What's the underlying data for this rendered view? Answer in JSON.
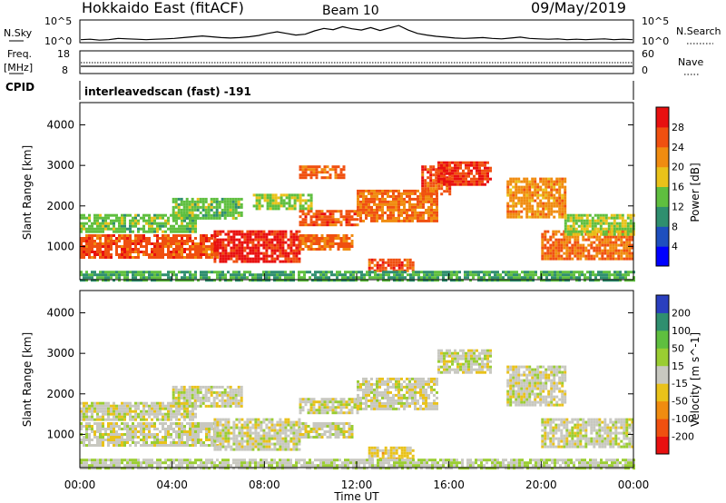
{
  "header": {
    "title": "Hokkaido East (fitACF)",
    "beam": "Beam 10",
    "date": "09/May/2019"
  },
  "aux_panels": {
    "nsky": {
      "label": "N.Sky",
      "y_ticks_left": [
        "10^5",
        "10^0"
      ],
      "y_ticks_right": [
        "10^5",
        "10^0"
      ],
      "right_label": "N.Search",
      "values": [
        0.5,
        0.6,
        0.4,
        0.5,
        0.8,
        0.7,
        0.6,
        0.5,
        0.6,
        0.7,
        0.8,
        1.0,
        1.2,
        1.4,
        1.2,
        1.0,
        0.9,
        1.0,
        1.2,
        1.5,
        2.0,
        2.4,
        2.0,
        1.6,
        1.8,
        2.6,
        3.2,
        2.9,
        3.6,
        3.1,
        2.8,
        3.4,
        2.7,
        3.3,
        3.9,
        2.8,
        2.0,
        1.6,
        1.3,
        1.1,
        0.9,
        0.8,
        0.9,
        1.0,
        0.8,
        0.7,
        0.9,
        1.1,
        0.8,
        0.7,
        0.6,
        0.7,
        0.5,
        0.6,
        0.5,
        0.6,
        0.7,
        0.5,
        0.6,
        0.5
      ]
    },
    "freq": {
      "label": "Freq.",
      "unit": "[MHz]",
      "y_ticks_left": [
        "18",
        "8"
      ],
      "y_ticks_right": [
        "60",
        "0"
      ],
      "right_label": "Nave"
    },
    "cpid": {
      "label": "CPID",
      "text": "interleavedscan (fast) -191"
    }
  },
  "x_axis": {
    "label": "Time UT",
    "ticks": [
      "00:00",
      "04:00",
      "08:00",
      "12:00",
      "16:00",
      "20:00",
      "00:00"
    ]
  },
  "chart_data": [
    {
      "type": "heatmap",
      "name": "power",
      "ylabel": "Slant Range [km]",
      "yticks": [
        1000,
        2000,
        3000,
        4000
      ],
      "ylim": [
        180,
        4550
      ],
      "xlim_hours": [
        0,
        24
      ],
      "colorbar": {
        "label": "Power [dB]",
        "ticks": [
          "4",
          "8",
          "12",
          "16",
          "20",
          "24",
          "28"
        ],
        "range": [
          0,
          32
        ],
        "colors": [
          "#0000ff",
          "#1e4fbf",
          "#2f8f6f",
          "#5fbf3f",
          "#e9c21a",
          "#f08c10",
          "#f05010",
          "#e81010"
        ]
      },
      "regions": [
        {
          "t0": 0,
          "t1": 6,
          "r0": 700,
          "r1": 1300,
          "level": 26
        },
        {
          "t0": 5.8,
          "t1": 9.5,
          "r0": 600,
          "r1": 1400,
          "level": 29
        },
        {
          "t0": 9.5,
          "t1": 11.8,
          "r0": 900,
          "r1": 1300,
          "level": 24
        },
        {
          "t0": 0,
          "t1": 5,
          "r0": 1350,
          "r1": 1800,
          "level": 14
        },
        {
          "t0": 4,
          "t1": 7,
          "r0": 1700,
          "r1": 2200,
          "level": 14
        },
        {
          "t0": 7.5,
          "t1": 10,
          "r0": 1900,
          "r1": 2300,
          "level": 16
        },
        {
          "t0": 9.5,
          "t1": 12,
          "r0": 1500,
          "r1": 1900,
          "level": 26
        },
        {
          "t0": 9.5,
          "t1": 11.5,
          "r0": 2700,
          "r1": 3000,
          "level": 25
        },
        {
          "t0": 12,
          "t1": 15.5,
          "r0": 1600,
          "r1": 2400,
          "level": 24
        },
        {
          "t0": 14.8,
          "t1": 16,
          "r0": 2300,
          "r1": 3000,
          "level": 26
        },
        {
          "t0": 15.5,
          "t1": 17.8,
          "r0": 2500,
          "r1": 3100,
          "level": 28
        },
        {
          "t0": 12.5,
          "t1": 14.5,
          "r0": 400,
          "r1": 700,
          "level": 26
        },
        {
          "t0": 18.5,
          "t1": 21,
          "r0": 1700,
          "r1": 2700,
          "level": 22
        },
        {
          "t0": 20,
          "t1": 24,
          "r0": 700,
          "r1": 1400,
          "level": 24
        },
        {
          "t0": 21,
          "t1": 24,
          "r0": 1300,
          "r1": 1800,
          "level": 16
        },
        {
          "t0": 0,
          "t1": 24,
          "r0": 180,
          "r1": 400,
          "level": 12
        }
      ]
    },
    {
      "type": "heatmap",
      "name": "velocity",
      "ylabel": "Slant Range [km]",
      "yticks": [
        1000,
        2000,
        3000,
        4000
      ],
      "ylim": [
        180,
        4550
      ],
      "xlim_hours": [
        0,
        24
      ],
      "colorbar": {
        "label": "Velocity [m s^-1]",
        "ticks": [
          "200",
          "100",
          "50",
          "15",
          "-15",
          "-50",
          "-100",
          "-200"
        ],
        "range": [
          -250,
          250
        ],
        "colors": [
          "#2a3fbf",
          "#2f8f6f",
          "#5fbf3f",
          "#9acd32",
          "#c8c8c0",
          "#e9c21a",
          "#f08c10",
          "#f05010",
          "#e81010"
        ]
      },
      "regions": [
        {
          "t0": 0,
          "t1": 6,
          "r0": 700,
          "r1": 1300,
          "level": 0
        },
        {
          "t0": 5.8,
          "t1": 9.5,
          "r0": 600,
          "r1": 1400,
          "level": 0
        },
        {
          "t0": 9.5,
          "t1": 11.8,
          "r0": 900,
          "r1": 1300,
          "level": 0
        },
        {
          "t0": 0,
          "t1": 5,
          "r0": 1350,
          "r1": 1800,
          "level": 0
        },
        {
          "t0": 4,
          "t1": 7,
          "r0": 1700,
          "r1": 2200,
          "level": 0
        },
        {
          "t0": 9.5,
          "t1": 12,
          "r0": 1500,
          "r1": 1900,
          "level": 0
        },
        {
          "t0": 12,
          "t1": 15.5,
          "r0": 1600,
          "r1": 2400,
          "level": 0
        },
        {
          "t0": 15.5,
          "t1": 17.8,
          "r0": 2500,
          "r1": 3100,
          "level": 0
        },
        {
          "t0": 18.5,
          "t1": 21,
          "r0": 1700,
          "r1": 2700,
          "level": 0
        },
        {
          "t0": 20,
          "t1": 24,
          "r0": 700,
          "r1": 1400,
          "level": 0
        },
        {
          "t0": 12.5,
          "t1": 14.5,
          "r0": 400,
          "r1": 700,
          "level": -40
        },
        {
          "t0": 0,
          "t1": 24,
          "r0": 180,
          "r1": 400,
          "level": 20
        }
      ]
    }
  ]
}
